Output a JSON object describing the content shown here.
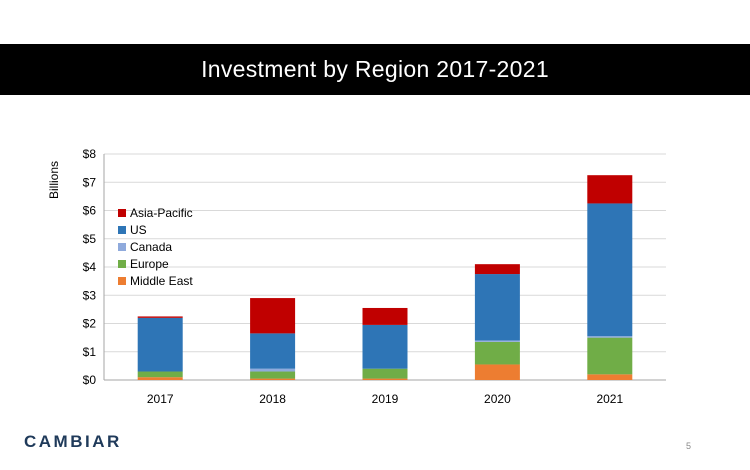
{
  "slide": {
    "title": "Investment by Region 2017-2021",
    "logo": "CAMBIAR",
    "page_number": "5"
  },
  "chart_data": {
    "type": "bar",
    "stacked": true,
    "title": "",
    "xlabel": "",
    "ylabel": "Billions",
    "ylim": [
      0,
      8
    ],
    "yticks": [
      0,
      1,
      2,
      3,
      4,
      5,
      6,
      7,
      8
    ],
    "ytick_labels": [
      "$0",
      "$1",
      "$2",
      "$3",
      "$4",
      "$5",
      "$6",
      "$7",
      "$8"
    ],
    "grid": true,
    "legend_position": "left",
    "categories": [
      "2017",
      "2018",
      "2019",
      "2020",
      "2021"
    ],
    "series": [
      {
        "name": "Middle East",
        "color": "#ed7d31",
        "values": [
          0.1,
          0.05,
          0.05,
          0.55,
          0.2
        ]
      },
      {
        "name": "Europe",
        "color": "#70ad47",
        "values": [
          0.2,
          0.25,
          0.35,
          0.8,
          1.3
        ]
      },
      {
        "name": "Canada",
        "color": "#8faadc",
        "values": [
          0.0,
          0.1,
          0.0,
          0.05,
          0.05
        ]
      },
      {
        "name": "US",
        "color": "#2e75b6",
        "values": [
          1.9,
          1.25,
          1.55,
          2.35,
          4.7
        ]
      },
      {
        "name": "Asia-Pacific",
        "color": "#c00000",
        "values": [
          0.05,
          1.25,
          0.6,
          0.35,
          1.0
        ]
      }
    ],
    "legend_order": [
      "Asia-Pacific",
      "US",
      "Canada",
      "Europe",
      "Middle East"
    ]
  }
}
